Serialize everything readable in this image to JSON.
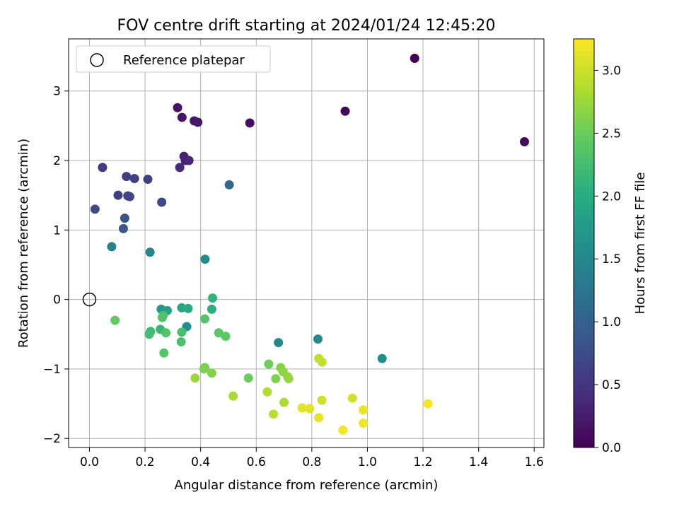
{
  "chart_data": {
    "type": "scatter",
    "title": "FOV centre drift starting at 2024/01/24 12:45:20",
    "xlabel": "Angular distance from reference (arcmin)",
    "ylabel": "Rotation from reference (arcmin)",
    "xlim": [
      -0.075,
      1.635
    ],
    "ylim": [
      -2.13,
      3.75
    ],
    "xticks": [
      0.0,
      0.2,
      0.4,
      0.6,
      0.8,
      1.0,
      1.2,
      1.4,
      1.6
    ],
    "xtick_labels": [
      "0.0",
      "0.2",
      "0.4",
      "0.6",
      "0.8",
      "1.0",
      "1.2",
      "1.4",
      "1.6"
    ],
    "yticks": [
      -2,
      -1,
      0,
      1,
      2,
      3
    ],
    "ytick_labels": [
      "−2",
      "−1",
      "0",
      "1",
      "2",
      "3"
    ],
    "grid": true,
    "legend": {
      "position": "upper-left",
      "entries": [
        {
          "label": "Reference platepar",
          "marker": "open-circle"
        }
      ]
    },
    "reference_point": {
      "x": 0.0,
      "y": 0.0
    },
    "colorbar": {
      "label": "Hours from first FF file",
      "colormap": "viridis",
      "range": [
        0.0,
        3.25
      ],
      "ticks": [
        0.0,
        0.5,
        1.0,
        1.5,
        2.0,
        2.5,
        3.0
      ],
      "tick_labels": [
        "0.0",
        "0.5",
        "1.0",
        "1.5",
        "2.0",
        "2.5",
        "3.0"
      ]
    },
    "points": [
      {
        "x": 1.17,
        "y": 3.47,
        "c": 0.02
      },
      {
        "x": 0.92,
        "y": 2.71,
        "c": 0.05
      },
      {
        "x": 1.565,
        "y": 2.27,
        "c": 0.08
      },
      {
        "x": 0.577,
        "y": 2.54,
        "c": 0.12
      },
      {
        "x": 0.317,
        "y": 2.76,
        "c": 0.17
      },
      {
        "x": 0.333,
        "y": 2.62,
        "c": 0.19
      },
      {
        "x": 0.377,
        "y": 2.57,
        "c": 0.2
      },
      {
        "x": 0.39,
        "y": 2.55,
        "c": 0.22
      },
      {
        "x": 0.34,
        "y": 2.06,
        "c": 0.3
      },
      {
        "x": 0.345,
        "y": 2.0,
        "c": 0.32
      },
      {
        "x": 0.358,
        "y": 2.0,
        "c": 0.34
      },
      {
        "x": 0.325,
        "y": 1.9,
        "c": 0.38
      },
      {
        "x": 0.047,
        "y": 1.9,
        "c": 0.55
      },
      {
        "x": 0.133,
        "y": 1.77,
        "c": 0.57
      },
      {
        "x": 0.162,
        "y": 1.74,
        "c": 0.6
      },
      {
        "x": 0.21,
        "y": 1.73,
        "c": 0.62
      },
      {
        "x": 0.103,
        "y": 1.5,
        "c": 0.63
      },
      {
        "x": 0.138,
        "y": 1.49,
        "c": 0.65
      },
      {
        "x": 0.145,
        "y": 1.48,
        "c": 0.68
      },
      {
        "x": 0.26,
        "y": 1.4,
        "c": 0.7
      },
      {
        "x": 0.02,
        "y": 1.3,
        "c": 0.72
      },
      {
        "x": 0.127,
        "y": 1.17,
        "c": 0.82
      },
      {
        "x": 0.122,
        "y": 1.02,
        "c": 0.88
      },
      {
        "x": 0.503,
        "y": 1.65,
        "c": 1.1
      },
      {
        "x": 0.08,
        "y": 0.76,
        "c": 1.42
      },
      {
        "x": 0.218,
        "y": 0.68,
        "c": 1.45
      },
      {
        "x": 0.416,
        "y": 0.58,
        "c": 1.55
      },
      {
        "x": 0.822,
        "y": -0.57,
        "c": 1.52
      },
      {
        "x": 0.68,
        "y": -0.62,
        "c": 1.52
      },
      {
        "x": 1.053,
        "y": -0.85,
        "c": 1.57
      },
      {
        "x": 0.35,
        "y": -0.39,
        "c": 1.6
      },
      {
        "x": 0.258,
        "y": -0.14,
        "c": 1.75
      },
      {
        "x": 0.28,
        "y": -0.16,
        "c": 1.85
      },
      {
        "x": 0.332,
        "y": -0.12,
        "c": 1.9
      },
      {
        "x": 0.355,
        "y": -0.13,
        "c": 2.0
      },
      {
        "x": 0.443,
        "y": 0.02,
        "c": 2.1
      },
      {
        "x": 0.44,
        "y": -0.14,
        "c": 2.05
      },
      {
        "x": 0.255,
        "y": -0.43,
        "c": 2.15
      },
      {
        "x": 0.22,
        "y": -0.46,
        "c": 2.2
      },
      {
        "x": 0.215,
        "y": -0.5,
        "c": 2.25
      },
      {
        "x": 0.265,
        "y": -0.23,
        "c": 2.3
      },
      {
        "x": 0.262,
        "y": -0.26,
        "c": 2.35
      },
      {
        "x": 0.275,
        "y": -0.48,
        "c": 2.35
      },
      {
        "x": 0.332,
        "y": -0.47,
        "c": 2.28
      },
      {
        "x": 0.33,
        "y": -0.61,
        "c": 2.3
      },
      {
        "x": 0.268,
        "y": -0.77,
        "c": 2.35
      },
      {
        "x": 0.415,
        "y": -0.28,
        "c": 2.38
      },
      {
        "x": 0.465,
        "y": -0.48,
        "c": 2.4
      },
      {
        "x": 0.49,
        "y": -0.53,
        "c": 2.42
      },
      {
        "x": 0.092,
        "y": -0.3,
        "c": 2.45
      },
      {
        "x": 0.572,
        "y": -1.13,
        "c": 2.5
      },
      {
        "x": 0.645,
        "y": -0.93,
        "c": 2.52
      },
      {
        "x": 0.415,
        "y": -0.98,
        "c": 2.55
      },
      {
        "x": 0.412,
        "y": -1.0,
        "c": 2.6
      },
      {
        "x": 0.44,
        "y": -1.06,
        "c": 2.62
      },
      {
        "x": 0.67,
        "y": -1.14,
        "c": 2.6
      },
      {
        "x": 0.688,
        "y": -0.98,
        "c": 2.65
      },
      {
        "x": 0.697,
        "y": -1.04,
        "c": 2.68
      },
      {
        "x": 0.713,
        "y": -1.11,
        "c": 2.7
      },
      {
        "x": 0.717,
        "y": -1.14,
        "c": 2.72
      },
      {
        "x": 0.38,
        "y": -1.13,
        "c": 2.75
      },
      {
        "x": 0.517,
        "y": -1.39,
        "c": 2.82
      },
      {
        "x": 0.7,
        "y": -1.48,
        "c": 2.82
      },
      {
        "x": 0.64,
        "y": -1.33,
        "c": 2.88
      },
      {
        "x": 0.662,
        "y": -1.65,
        "c": 2.9
      },
      {
        "x": 0.825,
        "y": -0.85,
        "c": 2.92
      },
      {
        "x": 0.837,
        "y": -0.9,
        "c": 2.95
      },
      {
        "x": 0.836,
        "y": -1.45,
        "c": 3.0
      },
      {
        "x": 0.946,
        "y": -1.42,
        "c": 3.02
      },
      {
        "x": 0.765,
        "y": -1.56,
        "c": 3.1
      },
      {
        "x": 0.792,
        "y": -1.57,
        "c": 3.12
      },
      {
        "x": 0.825,
        "y": -1.7,
        "c": 3.14
      },
      {
        "x": 0.985,
        "y": -1.59,
        "c": 3.16
      },
      {
        "x": 0.985,
        "y": -1.78,
        "c": 3.18
      },
      {
        "x": 0.912,
        "y": -1.88,
        "c": 3.2
      },
      {
        "x": 1.218,
        "y": -1.5,
        "c": 3.22
      }
    ]
  }
}
